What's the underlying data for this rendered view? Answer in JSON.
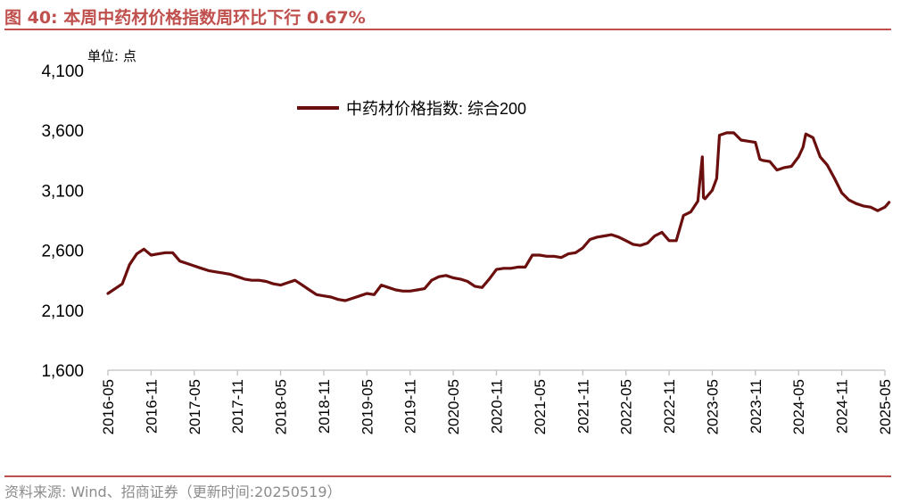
{
  "title": "图 40:  本周中药材价格指数周环比下行 0.67%",
  "unit_label": "单位: 点",
  "source": "资料来源: Wind、招商证券（更新时间:20250519）",
  "colors": {
    "accent": "#c0504d",
    "series": "#6b0e0e",
    "axis": "#bfbfbf",
    "source": "#8c8c8c"
  },
  "chart_data": {
    "type": "line",
    "ylim": [
      1600,
      4100
    ],
    "yticks": [
      1600,
      2100,
      2600,
      3100,
      3600,
      4100
    ],
    "ytick_labels": [
      "1,600",
      "2,100",
      "2,600",
      "3,100",
      "3,600",
      "4,100"
    ],
    "xticks": [
      "2016-05",
      "2016-11",
      "2017-05",
      "2017-11",
      "2018-05",
      "2018-11",
      "2019-05",
      "2019-11",
      "2020-05",
      "2020-11",
      "2021-05",
      "2021-11",
      "2022-05",
      "2022-11",
      "2023-05",
      "2023-11",
      "2024-05",
      "2024-11",
      "2025-05"
    ],
    "legend_position": "top-center",
    "series": [
      {
        "name": "中药材价格指数: 综合200",
        "points": [
          [
            "2016-05",
            2240
          ],
          [
            "2016-06",
            2280
          ],
          [
            "2016-07",
            2320
          ],
          [
            "2016-08",
            2480
          ],
          [
            "2016-09",
            2570
          ],
          [
            "2016-10",
            2610
          ],
          [
            "2016-11",
            2560
          ],
          [
            "2016-12",
            2570
          ],
          [
            "2017-01",
            2580
          ],
          [
            "2017-02",
            2580
          ],
          [
            "2017-03",
            2510
          ],
          [
            "2017-04",
            2490
          ],
          [
            "2017-05",
            2470
          ],
          [
            "2017-06",
            2450
          ],
          [
            "2017-07",
            2430
          ],
          [
            "2017-08",
            2420
          ],
          [
            "2017-09",
            2410
          ],
          [
            "2017-10",
            2400
          ],
          [
            "2017-11",
            2380
          ],
          [
            "2017-12",
            2360
          ],
          [
            "2018-01",
            2350
          ],
          [
            "2018-02",
            2350
          ],
          [
            "2018-03",
            2340
          ],
          [
            "2018-04",
            2320
          ],
          [
            "2018-05",
            2310
          ],
          [
            "2018-06",
            2330
          ],
          [
            "2018-07",
            2350
          ],
          [
            "2018-08",
            2310
          ],
          [
            "2018-09",
            2270
          ],
          [
            "2018-10",
            2230
          ],
          [
            "2018-11",
            2220
          ],
          [
            "2018-12",
            2210
          ],
          [
            "2019-01",
            2190
          ],
          [
            "2019-02",
            2180
          ],
          [
            "2019-03",
            2200
          ],
          [
            "2019-04",
            2220
          ],
          [
            "2019-05",
            2240
          ],
          [
            "2019-06",
            2230
          ],
          [
            "2019-07",
            2310
          ],
          [
            "2019-08",
            2290
          ],
          [
            "2019-09",
            2270
          ],
          [
            "2019-10",
            2260
          ],
          [
            "2019-11",
            2260
          ],
          [
            "2019-12",
            2270
          ],
          [
            "2020-01",
            2280
          ],
          [
            "2020-02",
            2350
          ],
          [
            "2020-03",
            2380
          ],
          [
            "2020-04",
            2390
          ],
          [
            "2020-05",
            2370
          ],
          [
            "2020-06",
            2360
          ],
          [
            "2020-07",
            2340
          ],
          [
            "2020-08",
            2300
          ],
          [
            "2020-09",
            2290
          ],
          [
            "2020-10",
            2360
          ],
          [
            "2020-11",
            2440
          ],
          [
            "2020-12",
            2450
          ],
          [
            "2021-01",
            2450
          ],
          [
            "2021-02",
            2460
          ],
          [
            "2021-03",
            2460
          ],
          [
            "2021-04",
            2560
          ],
          [
            "2021-05",
            2560
          ],
          [
            "2021-06",
            2550
          ],
          [
            "2021-07",
            2550
          ],
          [
            "2021-08",
            2540
          ],
          [
            "2021-09",
            2570
          ],
          [
            "2021-10",
            2580
          ],
          [
            "2021-11",
            2620
          ],
          [
            "2021-12",
            2690
          ],
          [
            "2022-01",
            2710
          ],
          [
            "2022-02",
            2720
          ],
          [
            "2022-03",
            2730
          ],
          [
            "2022-04",
            2710
          ],
          [
            "2022-05",
            2680
          ],
          [
            "2022-06",
            2650
          ],
          [
            "2022-07",
            2640
          ],
          [
            "2022-08",
            2660
          ],
          [
            "2022-09",
            2720
          ],
          [
            "2022-10",
            2750
          ],
          [
            "2022-11",
            2680
          ],
          [
            "2022-12",
            2680
          ],
          [
            "2023-01",
            2890
          ],
          [
            "2023-02",
            2920
          ],
          [
            "2023-03",
            3010
          ],
          [
            "2023-03-20",
            3380
          ],
          [
            "2023-03-25",
            3040
          ],
          [
            "2023-04",
            3030
          ],
          [
            "2023-05",
            3100
          ],
          [
            "2023-05-20",
            3200
          ],
          [
            "2023-06",
            3560
          ],
          [
            "2023-07",
            3580
          ],
          [
            "2023-08",
            3580
          ],
          [
            "2023-09",
            3520
          ],
          [
            "2023-10",
            3510
          ],
          [
            "2023-11",
            3500
          ],
          [
            "2023-11-20",
            3360
          ],
          [
            "2023-12",
            3350
          ],
          [
            "2024-01",
            3340
          ],
          [
            "2024-02",
            3270
          ],
          [
            "2024-03",
            3290
          ],
          [
            "2024-04",
            3300
          ],
          [
            "2024-05",
            3380
          ],
          [
            "2024-05-20",
            3460
          ],
          [
            "2024-06",
            3570
          ],
          [
            "2024-07",
            3540
          ],
          [
            "2024-08",
            3380
          ],
          [
            "2024-09",
            3310
          ],
          [
            "2024-10",
            3200
          ],
          [
            "2024-11",
            3080
          ],
          [
            "2024-12",
            3020
          ],
          [
            "2025-01",
            2990
          ],
          [
            "2025-02",
            2970
          ],
          [
            "2025-03",
            2960
          ],
          [
            "2025-04",
            2930
          ],
          [
            "2025-05",
            2960
          ],
          [
            "2025-05-19",
            3000
          ]
        ]
      }
    ]
  }
}
